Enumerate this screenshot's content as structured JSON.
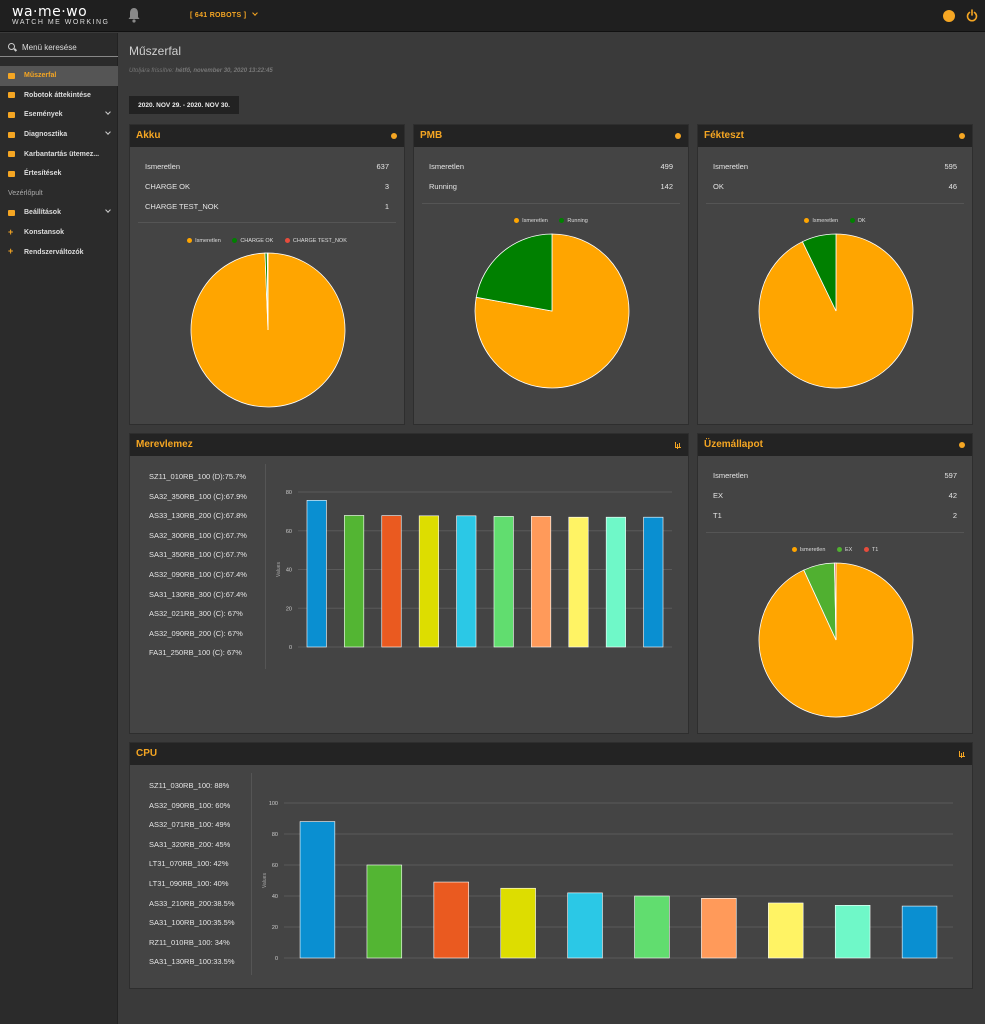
{
  "app": {
    "logo_main": "wa·me·wo",
    "logo_sub": "WATCH ME WORKING",
    "robots_label": "[ 641 ROBOTS ]",
    "colors": {
      "accent": "#f5a623",
      "topbar": "#1f1f1f",
      "sidebar": "#2b2b2b",
      "card": "#444444"
    }
  },
  "sidebar": {
    "search_placeholder": "Menü keresése",
    "items": [
      {
        "label": "Műszerfal",
        "active": true,
        "chevron": false
      },
      {
        "label": "Robotok áttekintése",
        "chevron": false
      },
      {
        "label": "Események",
        "chevron": true
      },
      {
        "label": "Diagnosztika",
        "chevron": true
      },
      {
        "label": "Karbantartás ütemez...",
        "chevron": false
      },
      {
        "label": "Értesítések",
        "chevron": false
      }
    ],
    "section": "Vezérlőpult",
    "items2": [
      {
        "label": "Beállítások",
        "chevron": true
      },
      {
        "label": "Konstansok",
        "chevron": false
      },
      {
        "label": "Rendszerváltozók",
        "chevron": false
      }
    ]
  },
  "main": {
    "title": "Műszerfal",
    "updated_prefix": "Utoljára frissítve:",
    "updated_value": "hétfő, november 30, 2020 13:22:45",
    "date_range": "2020. NOV 29. - 2020. NOV 30."
  },
  "cards": {
    "akku": {
      "title": "Akku",
      "rows": [
        {
          "label": "Ismeretlen",
          "value": "637"
        },
        {
          "label": "CHARGE OK",
          "value": "3"
        },
        {
          "label": "CHARGE TEST_NOK",
          "value": "1"
        }
      ],
      "legend": [
        "Ismeretlen",
        "CHARGE OK",
        "CHARGE TEST_NOK"
      ]
    },
    "pmb": {
      "title": "PMB",
      "rows": [
        {
          "label": "Ismeretlen",
          "value": "499"
        },
        {
          "label": "Running",
          "value": "142"
        }
      ],
      "legend": [
        "Ismeretlen",
        "Running"
      ]
    },
    "fekteszt": {
      "title": "Fékteszt",
      "rows": [
        {
          "label": "Ismeretlen",
          "value": "595"
        },
        {
          "label": "OK",
          "value": "46"
        }
      ],
      "legend": [
        "Ismeretlen",
        "OK"
      ]
    },
    "merevlemez": {
      "title": "Merevlemez",
      "labels": [
        "SZ11_010RB_100 (D):75.7%",
        "SA32_350RB_100 (C):67.9%",
        "AS33_130RB_200 (C):67.8%",
        "SA32_300RB_100 (C):67.7%",
        "SA31_350RB_100 (C):67.7%",
        "AS32_090RB_100 (C):67.4%",
        "SA31_130RB_300 (C):67.4%",
        "AS32_021RB_300 (C):   67%",
        "AS32_090RB_200 (C):   67%",
        "FA31_250RB_100 (C):   67%"
      ]
    },
    "uzemallapot": {
      "title": "Üzemállapot",
      "rows": [
        {
          "label": "Ismeretlen",
          "value": "597"
        },
        {
          "label": "EX",
          "value": "42"
        },
        {
          "label": "T1",
          "value": "2"
        }
      ],
      "legend": [
        "Ismeretlen",
        "EX",
        "T1"
      ]
    },
    "cpu": {
      "title": "CPU",
      "labels": [
        "SZ11_030RB_100:   88%",
        "AS32_090RB_100:   60%",
        "AS32_071RB_100:   49%",
        "SA31_320RB_200:   45%",
        "LT31_070RB_100:   42%",
        "LT31_090RB_100:   40%",
        "AS33_210RB_200:38.5%",
        "SA31_100RB_100:35.5%",
        "RZ11_010RB_100:   34%",
        "SA31_130RB_100:33.5%"
      ]
    }
  },
  "chart_data": [
    {
      "type": "pie",
      "title": "Akku",
      "categories": [
        "Ismeretlen",
        "CHARGE OK",
        "CHARGE TEST_NOK"
      ],
      "values": [
        637,
        3,
        1
      ],
      "colors": [
        "#ffa500",
        "#008000",
        "#e74c3c"
      ],
      "legend": "top"
    },
    {
      "type": "pie",
      "title": "PMB",
      "categories": [
        "Ismeretlen",
        "Running"
      ],
      "values": [
        499,
        142
      ],
      "colors": [
        "#ffa500",
        "#008000"
      ],
      "legend": "top"
    },
    {
      "type": "pie",
      "title": "Fékteszt",
      "categories": [
        "Ismeretlen",
        "OK"
      ],
      "values": [
        595,
        46
      ],
      "colors": [
        "#ffa500",
        "#008000"
      ],
      "legend": "top"
    },
    {
      "type": "bar",
      "title": "Merevlemez",
      "ylabel": "Values",
      "ylim": [
        0,
        80
      ],
      "yticks": [
        0,
        20,
        40,
        60,
        80
      ],
      "grid": true,
      "values": [
        75.7,
        67.9,
        67.8,
        67.7,
        67.7,
        67.4,
        67.4,
        67,
        67,
        67
      ],
      "colors": [
        "#0a8fd1",
        "#53b533",
        "#ea5a20",
        "#dddd00",
        "#2bc8e6",
        "#61dd6f",
        "#ff9a5a",
        "#fff364",
        "#6ff8c8",
        "#0a8fd1"
      ]
    },
    {
      "type": "pie",
      "title": "Üzemállapot",
      "categories": [
        "Ismeretlen",
        "EX",
        "T1"
      ],
      "values": [
        597,
        42,
        2
      ],
      "colors": [
        "#ffa500",
        "#50b030",
        "#e74c3c"
      ],
      "legend": "top"
    },
    {
      "type": "bar",
      "title": "CPU",
      "ylabel": "Values",
      "ylim": [
        0,
        100
      ],
      "yticks": [
        0,
        20,
        40,
        60,
        80,
        100
      ],
      "grid": true,
      "values": [
        88,
        60,
        49,
        45,
        42,
        40,
        38.5,
        35.5,
        34,
        33.5
      ],
      "colors": [
        "#0a8fd1",
        "#53b533",
        "#ea5a20",
        "#dddd00",
        "#2bc8e6",
        "#61dd6f",
        "#ff9a5a",
        "#fff364",
        "#6ff8c8",
        "#0a8fd1"
      ]
    }
  ]
}
